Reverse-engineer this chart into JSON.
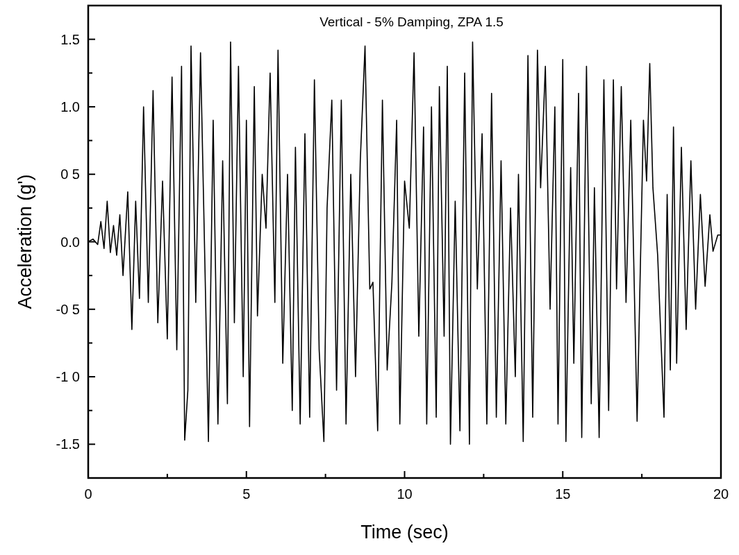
{
  "chart_data": {
    "type": "line",
    "title": "Vertical - 5% Damping, ZPA 1.5",
    "xlabel": "Time (sec)",
    "ylabel": "Acceleration (g')",
    "xlim": [
      0,
      20
    ],
    "xticks": [
      0,
      {
        "value": 2.5,
        "label": null
      },
      5,
      {
        "value": 7.5,
        "label": null
      },
      10,
      {
        "value": 12.5,
        "label": null
      },
      15,
      {
        "value": 17.5,
        "label": null
      },
      20
    ],
    "ylim": [
      -1.75,
      1.75
    ],
    "yticks": [
      {
        "value": -1.5,
        "label": "-1.5"
      },
      {
        "value": -1.25,
        "label": null
      },
      {
        "value": -1,
        "label": "-1 0"
      },
      {
        "value": -0.75,
        "label": null
      },
      {
        "value": -0.5,
        "label": "-0 5"
      },
      {
        "value": -0.25,
        "label": null
      },
      {
        "value": 0,
        "label": "0.0"
      },
      {
        "value": 0.25,
        "label": null
      },
      {
        "value": 0.5,
        "label": "0 5"
      },
      {
        "value": 0.75,
        "label": null
      },
      {
        "value": 1,
        "label": "1.0"
      },
      {
        "value": 1.25,
        "label": null
      },
      {
        "value": 1.5,
        "label": "1.5"
      }
    ],
    "grid": false,
    "marker": "none",
    "line_style": "solid",
    "x": [
      0,
      0.15,
      0.3,
      0.4,
      0.5,
      0.6,
      0.7,
      0.8,
      0.9,
      1.0,
      1.1,
      1.25,
      1.38,
      1.5,
      1.62,
      1.75,
      1.9,
      2.05,
      2.2,
      2.35,
      2.5,
      2.65,
      2.8,
      2.95,
      3.05,
      3.15,
      3.25,
      3.4,
      3.55,
      3.7,
      3.8,
      3.95,
      4.1,
      4.25,
      4.4,
      4.5,
      4.62,
      4.75,
      4.9,
      5.0,
      5.1,
      5.25,
      5.35,
      5.5,
      5.62,
      5.75,
      5.9,
      6.0,
      6.15,
      6.3,
      6.45,
      6.55,
      6.7,
      6.85,
      7.0,
      7.15,
      7.3,
      7.45,
      7.55,
      7.7,
      7.85,
      8.0,
      8.15,
      8.3,
      8.45,
      8.6,
      8.75,
      8.9,
      9.0,
      9.15,
      9.3,
      9.45,
      9.6,
      9.75,
      9.85,
      10.0,
      10.15,
      10.3,
      10.45,
      10.6,
      10.7,
      10.85,
      11.0,
      11.1,
      11.25,
      11.35,
      11.45,
      11.6,
      11.75,
      11.9,
      12.05,
      12.15,
      12.3,
      12.45,
      12.6,
      12.75,
      12.9,
      13.05,
      13.2,
      13.35,
      13.5,
      13.6,
      13.75,
      13.9,
      14.05,
      14.2,
      14.3,
      14.45,
      14.6,
      14.75,
      14.85,
      15.0,
      15.1,
      15.25,
      15.35,
      15.5,
      15.6,
      15.75,
      15.9,
      16.0,
      16.15,
      16.3,
      16.45,
      16.6,
      16.7,
      16.85,
      17.0,
      17.15,
      17.35,
      17.55,
      17.65,
      17.75,
      17.85,
      18.0,
      18.2,
      18.3,
      18.4,
      18.5,
      18.6,
      18.75,
      18.9,
      19.05,
      19.2,
      19.35,
      19.5,
      19.65,
      19.75,
      19.9,
      20
    ],
    "series": [
      {
        "color": "#000000",
        "values": [
          0,
          0.02,
          -0.02,
          0.15,
          -0.05,
          0.3,
          -0.08,
          0.12,
          -0.1,
          0.2,
          -0.25,
          0.37,
          -0.65,
          0.3,
          -0.42,
          1.0,
          -0.45,
          1.12,
          -0.6,
          0.45,
          -0.72,
          1.22,
          -0.8,
          1.3,
          -1.47,
          -1.1,
          1.45,
          -0.45,
          1.4,
          -0.3,
          -1.48,
          0.9,
          -1.35,
          0.6,
          -1.2,
          1.48,
          -0.6,
          1.3,
          -1.0,
          0.9,
          -1.37,
          1.15,
          -0.55,
          0.5,
          0.1,
          1.25,
          -0.45,
          1.42,
          -0.9,
          0.5,
          -1.25,
          0.7,
          -1.35,
          0.8,
          -1.3,
          1.2,
          -0.8,
          -1.48,
          0.25,
          1.05,
          -1.1,
          1.05,
          -1.35,
          0.5,
          -1.0,
          0.6,
          1.45,
          -0.35,
          -0.3,
          -1.4,
          1.05,
          -0.95,
          -0.3,
          0.9,
          -1.35,
          0.45,
          0.1,
          1.4,
          -0.7,
          0.85,
          -1.35,
          1.0,
          -1.3,
          1.15,
          -0.7,
          1.3,
          -1.5,
          0.3,
          -1.4,
          1.25,
          -1.5,
          1.48,
          -0.35,
          0.8,
          -1.35,
          1.1,
          -1.3,
          0.6,
          -1.35,
          0.25,
          -1.0,
          0.5,
          -1.48,
          1.38,
          -1.3,
          1.42,
          0.4,
          1.3,
          -0.5,
          1.0,
          -1.35,
          1.35,
          -1.48,
          0.55,
          -0.9,
          1.1,
          -1.45,
          1.3,
          -1.2,
          0.4,
          -1.45,
          1.2,
          -1.25,
          1.2,
          -0.35,
          1.15,
          -0.45,
          0.9,
          -1.33,
          0.9,
          0.45,
          1.32,
          0.4,
          -0.1,
          -1.3,
          0.35,
          -0.95,
          0.85,
          -0.9,
          0.7,
          -0.65,
          0.6,
          -0.5,
          0.35,
          -0.33,
          0.2,
          -0.07,
          0.05,
          0.05
        ]
      }
    ]
  }
}
